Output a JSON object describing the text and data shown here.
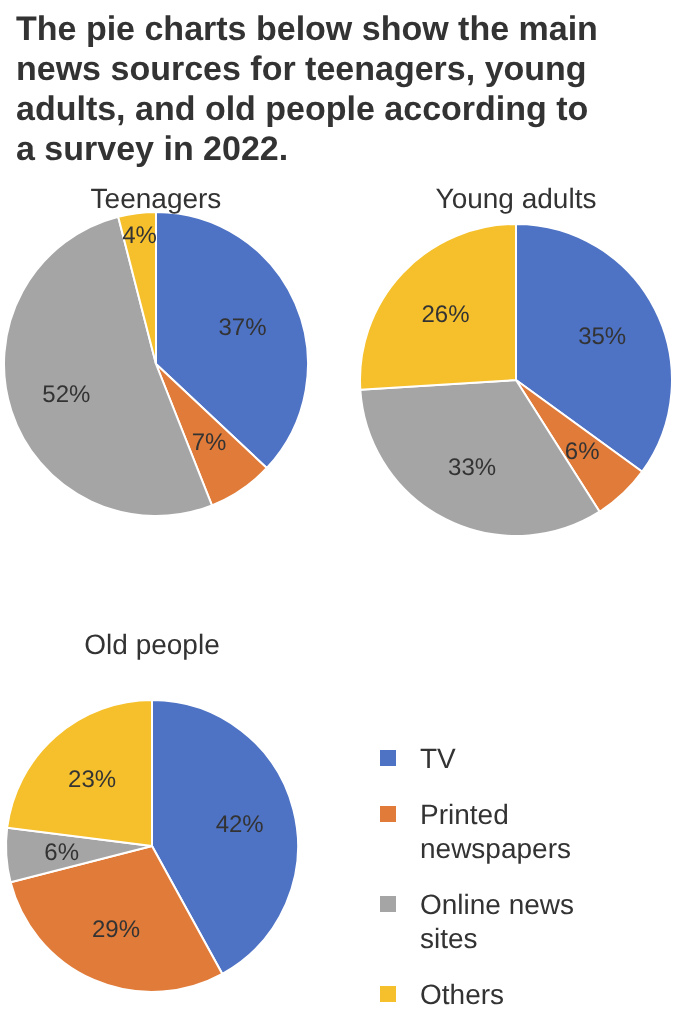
{
  "chart_data": [
    {
      "type": "pie",
      "title": "Teenagers",
      "annotations": [
        "The pie charts below show the main news sources for teenagers, young adults, and old people according to a survey in 2022."
      ],
      "values": [
        37,
        7,
        52,
        4
      ],
      "value_labels": [
        "37%",
        "7%",
        "52%",
        "4%"
      ],
      "colors": [
        "#4e72c4",
        "#e07b39",
        "#a5a5a5",
        "#f5c02c"
      ]
    },
    {
      "type": "pie",
      "title": "Young adults",
      "values": [
        35,
        6,
        33,
        26
      ],
      "value_labels": [
        "35%",
        "6%",
        "33%",
        "26%"
      ],
      "colors": [
        "#4e72c4",
        "#e07b39",
        "#a5a5a5",
        "#f5c02c"
      ]
    },
    {
      "type": "pie",
      "title": "Old people",
      "categories": [
        "TV",
        "Printed newspapers",
        "Online news sites",
        "Others"
      ],
      "values": [
        42,
        29,
        6,
        23
      ],
      "value_labels": [
        "42%",
        "29%",
        "6%",
        "23%"
      ],
      "colors": [
        "#4e72c4",
        "#e07b39",
        "#a5a5a5",
        "#f5c02c"
      ],
      "legend": "right"
    }
  ]
}
